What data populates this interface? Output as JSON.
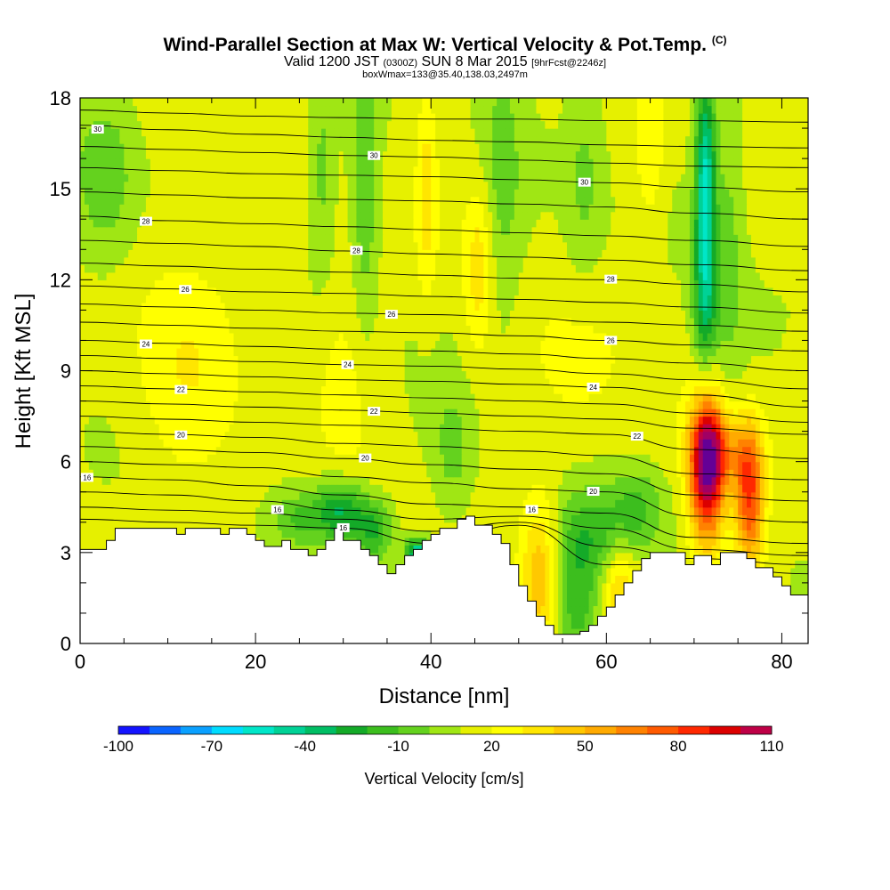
{
  "title": {
    "main": "Wind-Parallel Section at Max W: Vertical Velocity & Pot.Temp.",
    "copyright": "(C)",
    "valid_prefix": "Valid 1200 JST",
    "valid_utc": "(0300Z)",
    "valid_date": "SUN 8 Mar 2015",
    "forecast": "[9hrFcst@2246z]",
    "box": "boxWmax=133@35.40,138.03,2497m"
  },
  "chart_data": {
    "type": "heatmap",
    "xlabel": "Distance [nm]",
    "ylabel": "Height [Kft MSL]",
    "xlim": [
      0,
      83
    ],
    "ylim": [
      0,
      18
    ],
    "x_ticks": [
      0,
      20,
      40,
      60,
      80
    ],
    "y_ticks": [
      0,
      3,
      6,
      9,
      12,
      15,
      18
    ],
    "colorbar": {
      "label": "Vertical Velocity [cm/s]",
      "tick_labels": [
        -100,
        -70,
        -40,
        -10,
        20,
        50,
        80,
        110
      ],
      "levels": [
        -100,
        -90,
        -80,
        -70,
        -60,
        -50,
        -40,
        -30,
        -20,
        -10,
        0,
        10,
        20,
        30,
        40,
        50,
        60,
        70,
        80,
        90,
        100,
        110
      ],
      "colors": [
        "#1414ff",
        "#0a64ff",
        "#0aa0ff",
        "#00dcff",
        "#00e6c8",
        "#00d296",
        "#00be64",
        "#14aa28",
        "#3cbe1e",
        "#64d21e",
        "#a0e614",
        "#e6f000",
        "#ffff00",
        "#ffe600",
        "#ffc800",
        "#ffaa00",
        "#ff8200",
        "#ff5a00",
        "#ff2800",
        "#dc0000",
        "#be0046",
        "#a00064",
        "#640096"
      ]
    },
    "terrain": {
      "x": [
        0,
        3,
        3,
        4,
        4,
        11,
        11,
        12,
        12,
        16,
        16,
        17,
        17,
        19,
        19,
        20,
        20,
        21,
        21,
        23,
        23,
        24,
        24,
        26,
        26,
        27,
        27,
        28,
        28,
        29,
        29,
        30,
        30,
        32,
        32,
        33,
        33,
        34,
        34,
        35,
        35,
        36,
        36,
        37,
        37,
        38,
        38,
        39,
        39,
        40,
        40,
        41,
        41,
        43,
        43,
        44,
        44,
        45,
        45,
        47,
        47,
        48,
        48,
        49,
        49,
        50,
        50,
        51,
        51,
        52,
        52,
        53,
        53,
        54,
        54,
        55,
        55,
        57,
        57,
        58,
        58,
        59,
        59,
        60,
        60,
        61,
        61,
        62,
        62,
        63,
        63,
        64,
        64,
        65,
        65,
        66,
        66,
        67,
        67,
        69,
        69,
        70,
        70,
        72,
        72,
        73,
        73,
        74,
        74,
        76,
        76,
        77,
        77,
        79,
        79,
        80,
        80,
        81,
        81,
        82,
        82,
        83
      ],
      "y": [
        3.1,
        3.1,
        3.4,
        3.4,
        3.8,
        3.8,
        3.6,
        3.6,
        3.8,
        3.8,
        3.6,
        3.6,
        3.8,
        3.8,
        3.6,
        3.6,
        3.4,
        3.4,
        3.2,
        3.2,
        3.4,
        3.4,
        3.1,
        3.1,
        2.9,
        2.9,
        3.1,
        3.1,
        3.4,
        3.4,
        3.8,
        3.8,
        3.4,
        3.4,
        3.1,
        3.1,
        2.9,
        2.9,
        2.6,
        2.6,
        2.3,
        2.3,
        2.6,
        2.6,
        2.9,
        2.9,
        3.1,
        3.1,
        3.4,
        3.4,
        3.6,
        3.6,
        3.8,
        3.8,
        4.1,
        4.1,
        4.2,
        4.2,
        3.9,
        3.9,
        3.6,
        3.6,
        3.3,
        3.3,
        2.6,
        2.6,
        1.9,
        1.9,
        1.4,
        1.4,
        0.9,
        0.9,
        0.6,
        0.6,
        0.3,
        0.3,
        0.3,
        0.3,
        0.4,
        0.4,
        0.6,
        0.6,
        0.9,
        0.9,
        1.2,
        1.2,
        1.6,
        1.6,
        2.0,
        2.0,
        2.4,
        2.4,
        2.8,
        2.8,
        3.0,
        3.0,
        3.0,
        3.0,
        3.0,
        3.0,
        2.6,
        2.6,
        2.9,
        2.9,
        2.6,
        2.6,
        3.0,
        3.0,
        3.0,
        3.0,
        2.8,
        2.8,
        2.5,
        2.5,
        2.2,
        2.2,
        1.9,
        1.9,
        1.6,
        1.6,
        1.6,
        1.6
      ]
    },
    "w_cells": [
      {
        "x": 71.5,
        "y": 5.8,
        "sx": 1.4,
        "sy": 1.7,
        "w": 110
      },
      {
        "x": 76.3,
        "y": 4.8,
        "sx": 1.2,
        "sy": 1.6,
        "w": 70
      },
      {
        "x": 73.8,
        "y": 6.4,
        "sx": 2.5,
        "sy": 0.9,
        "w": 30
      },
      {
        "x": 52.5,
        "y": 2.2,
        "sx": 1.6,
        "sy": 1.8,
        "w": 40
      },
      {
        "x": 61.5,
        "y": 1.8,
        "sx": 1.4,
        "sy": 1.2,
        "w": 30
      },
      {
        "x": 56.5,
        "y": 1.3,
        "sx": 2.2,
        "sy": 1.6,
        "w": -30
      },
      {
        "x": 58.5,
        "y": 3.6,
        "sx": 3.5,
        "sy": 1.1,
        "w": -25
      },
      {
        "x": 63.5,
        "y": 4.5,
        "sx": 2.0,
        "sy": 0.9,
        "w": -20
      },
      {
        "x": 38.5,
        "y": 2.9,
        "sx": 0.9,
        "sy": 0.4,
        "w": -70
      },
      {
        "x": 29.5,
        "y": 4.4,
        "sx": 2.2,
        "sy": 0.7,
        "w": -45
      },
      {
        "x": 33.5,
        "y": 3.7,
        "sx": 1.5,
        "sy": 0.7,
        "w": -30
      },
      {
        "x": 24.5,
        "y": 4.1,
        "sx": 1.8,
        "sy": 0.6,
        "w": -20
      },
      {
        "x": 71.3,
        "y": 15.0,
        "sx": 0.8,
        "sy": 2.6,
        "w": -65
      },
      {
        "x": 71.3,
        "y": 11.0,
        "sx": 1.1,
        "sy": 1.7,
        "w": -30
      },
      {
        "x": 74.0,
        "y": 13.5,
        "sx": 1.3,
        "sy": 4.0,
        "w": -15
      },
      {
        "x": 32.5,
        "y": 15.0,
        "sx": 1.0,
        "sy": 3.5,
        "w": -20
      },
      {
        "x": 27.5,
        "y": 15.5,
        "sx": 1.0,
        "sy": 2.5,
        "w": -15
      },
      {
        "x": 3.0,
        "y": 15.5,
        "sx": 2.5,
        "sy": 2.0,
        "w": -20
      },
      {
        "x": 48.0,
        "y": 15.0,
        "sx": 1.6,
        "sy": 3.5,
        "w": -15
      },
      {
        "x": 57.5,
        "y": 15.5,
        "sx": 1.6,
        "sy": 2.5,
        "w": -15
      },
      {
        "x": 42.5,
        "y": 6.3,
        "sx": 1.5,
        "sy": 1.4,
        "w": -15
      },
      {
        "x": 39.5,
        "y": 15.0,
        "sx": 0.8,
        "sy": 2.5,
        "w": 22
      },
      {
        "x": 45.5,
        "y": 12.5,
        "sx": 1.2,
        "sy": 2.0,
        "w": 24
      },
      {
        "x": 65.0,
        "y": 16.5,
        "sx": 1.2,
        "sy": 2.0,
        "w": 18
      },
      {
        "x": 12.0,
        "y": 9.5,
        "sx": 4.5,
        "sy": 3.0,
        "w": 15
      },
      {
        "x": 57.0,
        "y": 9.0,
        "sx": 4.0,
        "sy": 2.0,
        "w": 12
      },
      {
        "x": 30.0,
        "y": 9.0,
        "sx": 3.0,
        "sy": 2.5,
        "w": 10
      }
    ],
    "theta_contours": [
      {
        "label": "30",
        "x": [
          0,
          10,
          20,
          30,
          40,
          50,
          60,
          70,
          83
        ],
        "y": [
          17.6,
          17.5,
          17.4,
          17.35,
          17.3,
          17.3,
          17.25,
          17.25,
          17.2
        ],
        "label_at": null
      },
      {
        "label": "30",
        "x": [
          0,
          10,
          20,
          30,
          40,
          50,
          60,
          70,
          83
        ],
        "y": [
          17.1,
          16.95,
          16.8,
          16.7,
          16.6,
          16.55,
          16.45,
          16.4,
          16.35
        ],
        "label_at": [
          2,
          16.97
        ]
      },
      {
        "label": "30",
        "x": [
          0,
          10,
          20,
          30,
          40,
          50,
          60,
          70,
          83
        ],
        "y": [
          16.4,
          16.3,
          16.2,
          16.1,
          16.05,
          15.95,
          15.85,
          15.75,
          15.7
        ],
        "label_at": [
          33.5,
          16.1
        ]
      },
      {
        "label": "30",
        "x": [
          0,
          10,
          20,
          30,
          40,
          50,
          60,
          70,
          83
        ],
        "y": [
          15.7,
          15.6,
          15.5,
          15.45,
          15.4,
          15.3,
          15.2,
          15.05,
          14.9
        ],
        "label_at": [
          57.5,
          15.22
        ]
      },
      {
        "label": "28",
        "x": [
          0,
          10,
          20,
          30,
          40,
          50,
          60,
          70,
          83
        ],
        "y": [
          14.9,
          14.8,
          14.7,
          14.65,
          14.6,
          14.5,
          14.4,
          14.2,
          14.0
        ],
        "label_at": null
      },
      {
        "label": "28",
        "x": [
          0,
          10,
          20,
          30,
          40,
          50,
          60,
          70,
          83
        ],
        "y": [
          14.1,
          13.95,
          13.85,
          13.75,
          13.65,
          13.55,
          13.45,
          13.3,
          13.1
        ],
        "label_at": [
          7.5,
          13.93
        ]
      },
      {
        "label": "28",
        "x": [
          0,
          10,
          20,
          30,
          40,
          50,
          60,
          70,
          83
        ],
        "y": [
          13.3,
          13.2,
          13.1,
          12.95,
          12.85,
          12.75,
          12.65,
          12.5,
          12.3
        ],
        "label_at": [
          31.5,
          12.97
        ]
      },
      {
        "label": "28",
        "x": [
          0,
          10,
          20,
          30,
          40,
          50,
          60,
          70,
          83
        ],
        "y": [
          12.55,
          12.45,
          12.35,
          12.25,
          12.15,
          12.05,
          12.0,
          11.85,
          11.6
        ],
        "label_at": [
          60.5,
          12.02
        ]
      },
      {
        "label": "26",
        "x": [
          0,
          10,
          20,
          30,
          40,
          50,
          60,
          70,
          83
        ],
        "y": [
          11.8,
          11.7,
          11.6,
          11.55,
          11.45,
          11.35,
          11.25,
          11.1,
          10.9
        ],
        "label_at": [
          12,
          11.68
        ]
      },
      {
        "label": "26",
        "x": [
          0,
          10,
          20,
          30,
          40,
          50,
          60,
          70,
          83
        ],
        "y": [
          11.2,
          11.1,
          11.0,
          10.9,
          10.85,
          10.75,
          10.6,
          10.5,
          10.3
        ],
        "label_at": [
          35.5,
          10.86
        ]
      },
      {
        "label": "26",
        "x": [
          0,
          10,
          20,
          30,
          40,
          50,
          60,
          70,
          83
        ],
        "y": [
          10.6,
          10.5,
          10.4,
          10.3,
          10.25,
          10.15,
          10.0,
          9.85,
          9.65
        ],
        "label_at": [
          60.5,
          10.0
        ]
      },
      {
        "label": "24",
        "x": [
          0,
          10,
          20,
          30,
          40,
          50,
          60,
          70,
          83
        ],
        "y": [
          10.0,
          9.9,
          9.8,
          9.7,
          9.65,
          9.55,
          9.4,
          9.25,
          9.0
        ],
        "label_at": [
          7.5,
          9.88
        ]
      },
      {
        "label": "24",
        "x": [
          0,
          10,
          20,
          30,
          40,
          50,
          60,
          70,
          83
        ],
        "y": [
          9.5,
          9.4,
          9.3,
          9.2,
          9.15,
          9.05,
          8.9,
          8.7,
          8.4
        ],
        "label_at": [
          30.5,
          9.2
        ]
      },
      {
        "label": "24",
        "x": [
          0,
          10,
          20,
          30,
          40,
          50,
          60,
          70,
          83
        ],
        "y": [
          9.0,
          8.9,
          8.8,
          8.7,
          8.65,
          8.55,
          8.45,
          8.2,
          7.8
        ],
        "label_at": [
          58.5,
          8.46
        ]
      },
      {
        "label": "22",
        "x": [
          0,
          10,
          20,
          30,
          40,
          50,
          60,
          70,
          83
        ],
        "y": [
          8.5,
          8.4,
          8.3,
          8.2,
          8.1,
          8.0,
          7.9,
          7.6,
          7.3
        ],
        "label_at": [
          11.5,
          8.38
        ]
      },
      {
        "label": "22",
        "x": [
          0,
          10,
          20,
          30,
          40,
          50,
          60,
          70,
          83
        ],
        "y": [
          8.0,
          7.9,
          7.8,
          7.7,
          7.6,
          7.5,
          7.4,
          7.1,
          6.9
        ],
        "label_at": [
          33.5,
          7.66
        ]
      },
      {
        "label": "22",
        "x": [
          0,
          10,
          20,
          30,
          40,
          50,
          60,
          70,
          83
        ],
        "y": [
          7.5,
          7.4,
          7.3,
          7.2,
          7.1,
          7.0,
          6.9,
          6.4,
          6.1
        ],
        "label_at": [
          63.5,
          6.84
        ]
      },
      {
        "label": "20",
        "x": [
          0,
          10,
          20,
          30,
          40,
          50,
          60,
          70,
          83
        ],
        "y": [
          7.0,
          6.9,
          6.8,
          6.6,
          6.5,
          6.35,
          6.2,
          5.6,
          5.4
        ],
        "label_at": [
          11.5,
          6.88
        ]
      },
      {
        "label": "20",
        "x": [
          0,
          10,
          20,
          30,
          40,
          50,
          60,
          70,
          83
        ],
        "y": [
          6.5,
          6.4,
          6.3,
          6.1,
          5.9,
          5.75,
          5.6,
          4.9,
          4.7
        ],
        "label_at": [
          32.5,
          6.12
        ]
      },
      {
        "label": "20",
        "x": [
          0,
          10,
          20,
          30,
          40,
          50,
          60,
          70,
          83
        ],
        "y": [
          6.0,
          5.9,
          5.8,
          5.5,
          5.3,
          5.1,
          5.0,
          4.2,
          4.0
        ],
        "label_at": [
          58.5,
          5.02
        ]
      },
      {
        "label": "16",
        "x": [
          0,
          10,
          20,
          30,
          40,
          50,
          60,
          70,
          83
        ],
        "y": [
          5.5,
          5.4,
          5.2,
          4.9,
          4.6,
          4.5,
          4.3,
          3.5,
          3.3
        ],
        "label_at": [
          0.8,
          5.48
        ]
      },
      {
        "label": "16",
        "x": [
          0,
          10,
          20,
          30,
          40,
          50,
          60,
          70,
          83
        ],
        "y": [
          5.0,
          4.9,
          4.7,
          4.4,
          4.1,
          4.2,
          3.8,
          3.1,
          2.9
        ],
        "label_at": [
          51.5,
          4.42
        ]
      },
      {
        "label": "16",
        "x": [
          0,
          10,
          20,
          30,
          40,
          50,
          60,
          70,
          83
        ],
        "y": [
          4.5,
          4.4,
          4.3,
          4.1,
          3.7,
          4.0,
          3.2,
          2.8,
          2.6
        ],
        "label_at": [
          22.5,
          4.42
        ]
      },
      {
        "label": "16",
        "x": [
          0,
          10,
          20,
          30,
          40,
          50,
          60,
          70,
          83
        ],
        "y": [
          4.1,
          4.0,
          3.9,
          3.8,
          3.3,
          3.9,
          2.6,
          2.6,
          2.3
        ],
        "label_at": [
          30.0,
          3.82
        ]
      }
    ]
  }
}
